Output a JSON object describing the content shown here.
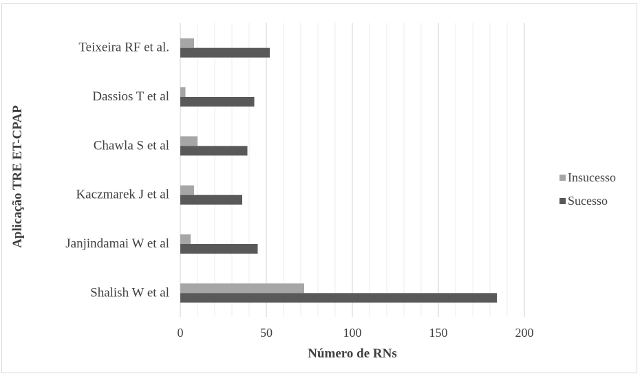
{
  "chart_data": {
    "type": "bar",
    "orientation": "horizontal",
    "title": "",
    "xlabel": "Número de RNs",
    "ylabel": "Aplicação TRE ET-CPAP",
    "categories": [
      "Teixeira RF et al.",
      "Dassios  T et al",
      "Chawla S et al",
      "Kaczmarek J et al",
      "Janjindamai W  et al",
      "Shalish W et al"
    ],
    "series": [
      {
        "name": "Insucesso",
        "color": "#a6a6a6",
        "values": [
          8,
          3,
          10,
          8,
          6,
          72
        ]
      },
      {
        "name": "Sucesso",
        "color": "#595959",
        "values": [
          52,
          43,
          39,
          36,
          45,
          184
        ]
      }
    ],
    "xlim": [
      0,
      200
    ],
    "xticks": [
      "0",
      "50",
      "100",
      "150",
      "200"
    ],
    "minor_grid_step": 10,
    "grid": true,
    "legend_position": "right"
  }
}
